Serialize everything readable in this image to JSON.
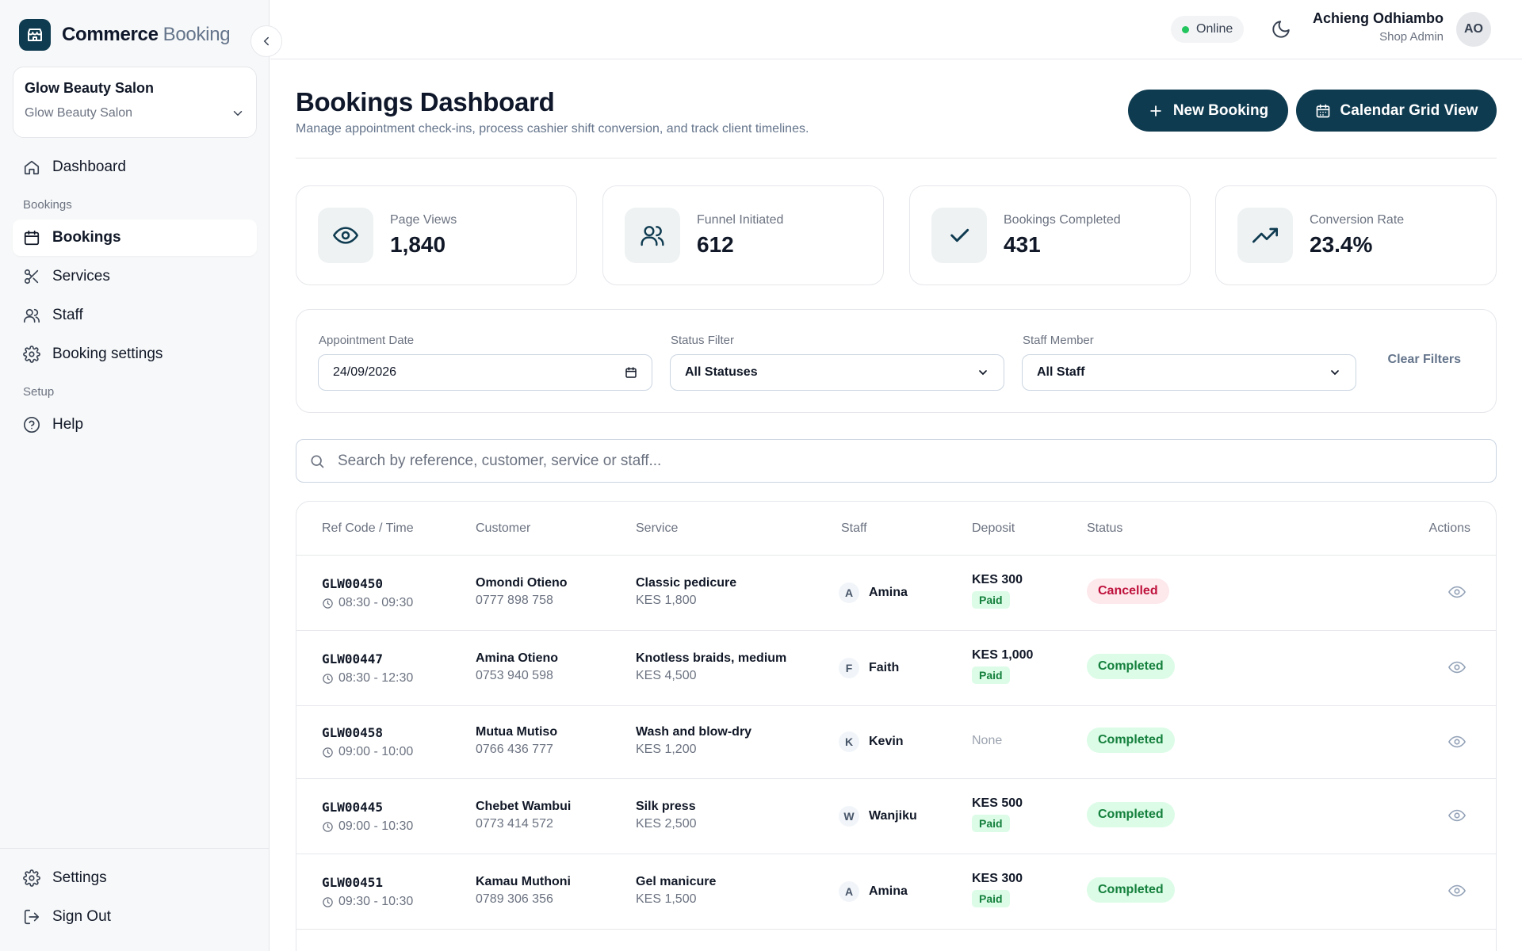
{
  "brand": {
    "name": "Commerce",
    "name_suffix": "Booking"
  },
  "shop": {
    "name": "Glow Beauty Salon",
    "selected": "Glow Beauty Salon"
  },
  "nav": {
    "dashboard": "Dashboard",
    "section_bookings": "Bookings",
    "bookings": "Bookings",
    "services": "Services",
    "staff": "Staff",
    "booking_settings": "Booking settings",
    "section_setup": "Setup",
    "help": "Help",
    "settings": "Settings",
    "sign_out": "Sign Out"
  },
  "header": {
    "status": "Online",
    "user_name": "Achieng Odhiambo",
    "user_role": "Shop Admin",
    "avatar_initials": "AO"
  },
  "page": {
    "title": "Bookings Dashboard",
    "subtitle": "Manage appointment check-ins, process cashier shift conversion, and track client timelines.",
    "new_booking": "New Booking",
    "calendar_view": "Calendar Grid View"
  },
  "stats": [
    {
      "label": "Page Views",
      "value": "1,840",
      "icon": "eye-icon"
    },
    {
      "label": "Funnel Initiated",
      "value": "612",
      "icon": "users-icon"
    },
    {
      "label": "Bookings Completed",
      "value": "431",
      "icon": "check-icon"
    },
    {
      "label": "Conversion Rate",
      "value": "23.4%",
      "icon": "trending-up-icon"
    }
  ],
  "filters": {
    "date_label": "Appointment Date",
    "date_value": "24/09/2026",
    "status_label": "Status Filter",
    "status_value": "All Statuses",
    "staff_label": "Staff Member",
    "staff_value": "All Staff",
    "clear": "Clear Filters"
  },
  "search": {
    "placeholder": "Search by reference, customer, service or staff..."
  },
  "table": {
    "headers": {
      "ref": "Ref Code / Time",
      "customer": "Customer",
      "service": "Service",
      "staff": "Staff",
      "deposit": "Deposit",
      "status": "Status",
      "actions": "Actions"
    },
    "rows": [
      {
        "ref": "GLW00450",
        "time": "08:30 - 09:30",
        "customer": "Omondi Otieno",
        "phone": "0777 898 758",
        "service": "Classic pedicure",
        "price": "KES 1,800",
        "staff_initial": "A",
        "staff": "Amina",
        "deposit": "KES 300",
        "deposit_status": "Paid",
        "status": "Cancelled"
      },
      {
        "ref": "GLW00447",
        "time": "08:30 - 12:30",
        "customer": "Amina Otieno",
        "phone": "0753 940 598",
        "service": "Knotless braids, medium",
        "price": "KES 4,500",
        "staff_initial": "F",
        "staff": "Faith",
        "deposit": "KES 1,000",
        "deposit_status": "Paid",
        "status": "Completed"
      },
      {
        "ref": "GLW00458",
        "time": "09:00 - 10:00",
        "customer": "Mutua Mutiso",
        "phone": "0766 436 777",
        "service": "Wash and blow-dry",
        "price": "KES 1,200",
        "staff_initial": "K",
        "staff": "Kevin",
        "deposit": "None",
        "deposit_status": "",
        "status": "Completed"
      },
      {
        "ref": "GLW00445",
        "time": "09:00 - 10:30",
        "customer": "Chebet Wambui",
        "phone": "0773 414 572",
        "service": "Silk press",
        "price": "KES 2,500",
        "staff_initial": "W",
        "staff": "Wanjiku",
        "deposit": "KES 500",
        "deposit_status": "Paid",
        "status": "Completed"
      },
      {
        "ref": "GLW00451",
        "time": "09:30 - 10:30",
        "customer": "Kamau Muthoni",
        "phone": "0789 306 356",
        "service": "Gel manicure",
        "price": "KES 1,500",
        "staff_initial": "A",
        "staff": "Amina",
        "deposit": "KES 300",
        "deposit_status": "Paid",
        "status": "Completed"
      }
    ]
  },
  "colors": {
    "brand": "#0f3b50",
    "cancelled_bg": "#fde8ec",
    "cancelled_fg": "#be123c",
    "completed_bg": "#dcfce7",
    "completed_fg": "#15803d",
    "online": "#22c55e"
  }
}
